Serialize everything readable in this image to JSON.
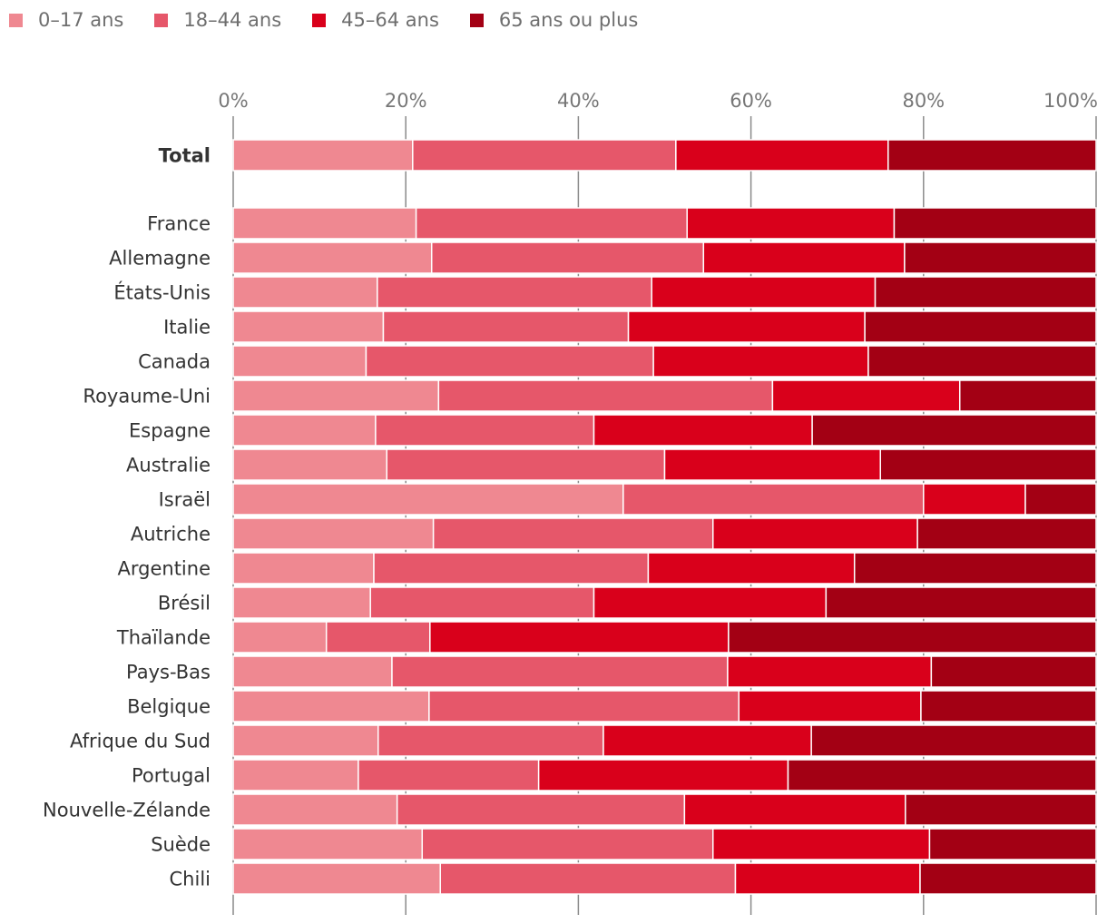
{
  "chart_data": {
    "type": "bar",
    "orientation": "horizontal",
    "stacked": true,
    "percent_axis": true,
    "xlim": [
      0,
      100
    ],
    "x_ticks": [
      "0%",
      "20%",
      "40%",
      "60%",
      "80%",
      "100%"
    ],
    "x_tick_values": [
      0,
      20,
      40,
      60,
      80,
      100
    ],
    "grid": true,
    "legend_position": "top-left",
    "categories": [
      "Total",
      "France",
      "Allemagne",
      "États-Unis",
      "Italie",
      "Canada",
      "Royaume-Uni",
      "Espagne",
      "Australie",
      "Israël",
      "Autriche",
      "Argentine",
      "Brésil",
      "Thaïlande",
      "Pays-Bas",
      "Belgique",
      "Afrique du Sud",
      "Portugal",
      "Nouvelle-Zélande",
      "Suède",
      "Chili"
    ],
    "series": [
      {
        "name": "0–17 ans",
        "color": "#ef8891",
        "values": [
          20.8,
          21.2,
          23.0,
          16.7,
          17.4,
          15.4,
          23.8,
          16.5,
          17.8,
          45.2,
          23.2,
          16.3,
          15.9,
          10.8,
          18.4,
          22.7,
          16.8,
          14.5,
          19.0,
          21.9,
          24.0
        ]
      },
      {
        "name": "18–44 ans",
        "color": "#e6576a",
        "values": [
          30.5,
          31.4,
          31.5,
          31.8,
          28.4,
          33.3,
          38.7,
          25.3,
          32.2,
          34.8,
          32.4,
          31.8,
          25.9,
          12.0,
          38.9,
          35.9,
          26.1,
          20.9,
          33.3,
          33.7,
          34.2
        ]
      },
      {
        "name": "45–64 ans",
        "color": "#d9001b",
        "values": [
          24.6,
          24.0,
          23.3,
          25.9,
          27.4,
          24.9,
          21.7,
          25.3,
          25.0,
          11.8,
          23.7,
          23.9,
          26.9,
          34.6,
          23.6,
          21.1,
          24.1,
          28.9,
          25.6,
          25.1,
          21.4
        ]
      },
      {
        "name": "65 ans ou plus",
        "color": "#a30014",
        "values": [
          24.1,
          23.4,
          22.2,
          25.6,
          26.8,
          26.4,
          15.8,
          32.9,
          25.0,
          8.2,
          20.7,
          28.0,
          31.3,
          42.6,
          19.1,
          20.3,
          33.0,
          35.7,
          22.1,
          19.3,
          20.4
        ]
      }
    ],
    "title": "",
    "xlabel": "",
    "ylabel": ""
  }
}
